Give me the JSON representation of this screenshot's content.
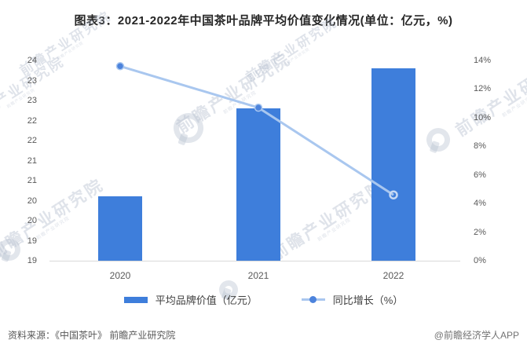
{
  "title": "图表3：2021-2022年中国茶叶品牌平均价值变化情况(单位：亿元，%)",
  "source_left": "资料来源：《中国茶叶》 前瞻产业研究院",
  "source_right": "@前瞻经济学人APP",
  "watermark": {
    "text": "前瞻产业研究院"
  },
  "legend": {
    "bar_label": "平均品牌价值（亿元）",
    "line_label": "同比增长（%）"
  },
  "colors": {
    "bar": "#3E7EDB",
    "line": "#A9C7EF",
    "marker": "#4C83DC",
    "marker_ring": "#C6D9F4",
    "axis_line": "#D9D9D9"
  },
  "chart_data": {
    "type": "bar",
    "subtype": "bar+line combo, dual axis",
    "title": "图表3：2021-2022年中国茶叶品牌平均价值变化情况(单位：亿元，%)",
    "categories": [
      "2020",
      "2021",
      "2022"
    ],
    "series": [
      {
        "name": "平均品牌价值（亿元）",
        "type": "bar",
        "axis": "left",
        "values": [
          20.6,
          22.8,
          23.8
        ]
      },
      {
        "name": "同比增长（%）",
        "type": "line",
        "axis": "right",
        "values": [
          13.6,
          10.7,
          4.6
        ]
      }
    ],
    "left_axis": {
      "min": 19,
      "max": 24,
      "step": 0.5,
      "tick_labels": [
        "24",
        "23",
        "23",
        "22",
        "22",
        "21",
        "21",
        "20",
        "20",
        "19",
        "19"
      ]
    },
    "right_axis": {
      "min": 0,
      "max": 14,
      "step": 2,
      "tick_labels": [
        "14%",
        "12%",
        "10%",
        "8%",
        "6%",
        "4%",
        "2%",
        "0%"
      ]
    },
    "grid": false,
    "legend_position": "bottom"
  }
}
